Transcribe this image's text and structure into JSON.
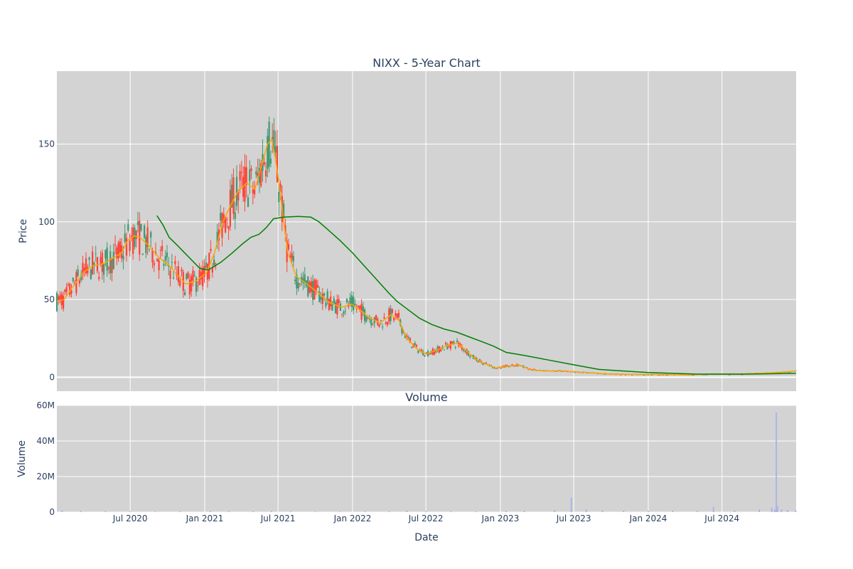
{
  "chart_data": [
    {
      "type": "candlestick",
      "title": "NIXX - 5-Year Chart",
      "xlabel": "",
      "ylabel": "Price",
      "ylim": [
        -9,
        197
      ],
      "grid": true,
      "yticks": [
        0,
        50,
        100,
        150
      ],
      "colors": {
        "increasing": "#3d9970",
        "decreasing": "#ff4136",
        "ma_short": "#ffa500",
        "ma_long": "#008000",
        "plot_bg": "#d3d3d3",
        "grid": "#ffffff"
      },
      "overlays": [
        {
          "kind": "moving-average-short",
          "points": [
            [
              "2020-01-02",
              49
            ],
            [
              "2020-01-20",
              50
            ],
            [
              "2020-02-10",
              58
            ],
            [
              "2020-03-10",
              68
            ],
            [
              "2020-04-01",
              72
            ],
            [
              "2020-04-25",
              73
            ],
            [
              "2020-05-15",
              76
            ],
            [
              "2020-06-10",
              80
            ],
            [
              "2020-06-25",
              88
            ],
            [
              "2020-07-10",
              91
            ],
            [
              "2020-07-25",
              90
            ],
            [
              "2020-08-15",
              85
            ],
            [
              "2020-09-10",
              77
            ],
            [
              "2020-10-05",
              72
            ],
            [
              "2020-10-25",
              66
            ],
            [
              "2020-11-15",
              60
            ],
            [
              "2020-12-10",
              62
            ],
            [
              "2021-01-05",
              67
            ],
            [
              "2021-01-25",
              80
            ],
            [
              "2021-02-15",
              100
            ],
            [
              "2021-03-05",
              110
            ],
            [
              "2021-03-25",
              120
            ],
            [
              "2021-04-15",
              125
            ],
            [
              "2021-05-05",
              121
            ],
            [
              "2021-05-20",
              135
            ],
            [
              "2021-06-05",
              150
            ],
            [
              "2021-06-15",
              153
            ],
            [
              "2021-06-25",
              140
            ],
            [
              "2021-07-05",
              122
            ],
            [
              "2021-07-15",
              100
            ],
            [
              "2021-07-25",
              80
            ],
            [
              "2021-08-15",
              65
            ],
            [
              "2021-09-10",
              60
            ],
            [
              "2021-10-10",
              54
            ],
            [
              "2021-11-05",
              48
            ],
            [
              "2021-12-05",
              45
            ],
            [
              "2021-12-30",
              47
            ],
            [
              "2022-01-20",
              43
            ],
            [
              "2022-02-15",
              38
            ],
            [
              "2022-03-10",
              35
            ],
            [
              "2022-04-05",
              40
            ],
            [
              "2022-04-25",
              37
            ],
            [
              "2022-05-15",
              25
            ],
            [
              "2022-06-10",
              18
            ],
            [
              "2022-07-01",
              15
            ],
            [
              "2022-07-25",
              17
            ],
            [
              "2022-08-20",
              20
            ],
            [
              "2022-09-15",
              22
            ],
            [
              "2022-10-05",
              18
            ],
            [
              "2022-10-25",
              13
            ],
            [
              "2022-11-20",
              9
            ],
            [
              "2022-12-20",
              6
            ],
            [
              "2023-01-20",
              7
            ],
            [
              "2023-02-15",
              8
            ],
            [
              "2023-03-15",
              5
            ],
            [
              "2023-04-15",
              4
            ],
            [
              "2023-06-01",
              4
            ],
            [
              "2023-08-01",
              3
            ],
            [
              "2023-10-01",
              2
            ],
            [
              "2023-12-01",
              1.8
            ],
            [
              "2024-02-01",
              1.8
            ],
            [
              "2024-04-01",
              1.5
            ],
            [
              "2024-06-01",
              2
            ],
            [
              "2024-08-01",
              2
            ],
            [
              "2024-10-01",
              2.5
            ],
            [
              "2024-11-15",
              3
            ],
            [
              "2024-12-31",
              4
            ]
          ]
        },
        {
          "kind": "moving-average-long",
          "points": [
            [
              "2020-09-05",
              104
            ],
            [
              "2020-09-20",
              98
            ],
            [
              "2020-10-05",
              90
            ],
            [
              "2020-10-25",
              85
            ],
            [
              "2020-11-20",
              78
            ],
            [
              "2020-12-20",
              70
            ],
            [
              "2021-01-10",
              69
            ],
            [
              "2021-02-10",
              74
            ],
            [
              "2021-03-10",
              80
            ],
            [
              "2021-04-05",
              86
            ],
            [
              "2021-04-25",
              90
            ],
            [
              "2021-05-15",
              92
            ],
            [
              "2021-06-01",
              96
            ],
            [
              "2021-06-20",
              102
            ],
            [
              "2021-07-15",
              103
            ],
            [
              "2021-08-20",
              103.5
            ],
            [
              "2021-09-20",
              103
            ],
            [
              "2021-10-10",
              100
            ],
            [
              "2021-11-01",
              95
            ],
            [
              "2021-12-01",
              88
            ],
            [
              "2022-01-01",
              80
            ],
            [
              "2022-02-01",
              71
            ],
            [
              "2022-03-01",
              63
            ],
            [
              "2022-04-01",
              54
            ],
            [
              "2022-04-20",
              49
            ],
            [
              "2022-05-15",
              44
            ],
            [
              "2022-06-15",
              38
            ],
            [
              "2022-07-15",
              34
            ],
            [
              "2022-08-15",
              31
            ],
            [
              "2022-09-15",
              29
            ],
            [
              "2022-10-15",
              26
            ],
            [
              "2022-11-15",
              23
            ],
            [
              "2022-12-15",
              20
            ],
            [
              "2023-01-15",
              16
            ],
            [
              "2023-03-01",
              14
            ],
            [
              "2023-05-01",
              11
            ],
            [
              "2023-07-01",
              8
            ],
            [
              "2023-09-01",
              5
            ],
            [
              "2023-11-01",
              4
            ],
            [
              "2024-01-01",
              3
            ],
            [
              "2024-03-01",
              2.5
            ],
            [
              "2024-05-01",
              2
            ],
            [
              "2024-07-01",
              2
            ],
            [
              "2024-09-01",
              2
            ],
            [
              "2024-11-01",
              2.2
            ],
            [
              "2024-12-31",
              2.5
            ]
          ]
        }
      ]
    },
    {
      "type": "bar",
      "title": "Volume",
      "xlabel": "Date",
      "ylabel": "Volume",
      "ylim": [
        0,
        60000000
      ],
      "grid": true,
      "yticks": [
        0,
        20000000,
        40000000,
        60000000
      ],
      "ytick_labels": [
        "0",
        "20M",
        "40M",
        "60M"
      ],
      "xticks": [
        {
          "date": "2020-07-01",
          "label": "Jul 2020"
        },
        {
          "date": "2021-01-01",
          "label": "Jan 2021"
        },
        {
          "date": "2021-07-01",
          "label": "Jul 2021"
        },
        {
          "date": "2022-01-01",
          "label": "Jan 2022"
        },
        {
          "date": "2022-07-01",
          "label": "Jul 2022"
        },
        {
          "date": "2023-01-01",
          "label": "Jan 2023"
        },
        {
          "date": "2023-07-01",
          "label": "Jul 2023"
        },
        {
          "date": "2024-01-01",
          "label": "Jan 2024"
        },
        {
          "date": "2024-07-01",
          "label": "Jul 2024"
        }
      ],
      "colors": {
        "bar": "#aeb4e8",
        "plot_bg": "#d3d3d3",
        "grid": "#ffffff"
      },
      "series": [
        {
          "points": [
            [
              "2020-01-15",
              800000
            ],
            [
              "2020-03-01",
              600000
            ],
            [
              "2020-05-01",
              500000
            ],
            [
              "2020-07-01",
              400000
            ],
            [
              "2020-09-01",
              300000
            ],
            [
              "2020-11-01",
              400000
            ],
            [
              "2021-01-15",
              600000
            ],
            [
              "2021-03-01",
              500000
            ],
            [
              "2021-05-01",
              500000
            ],
            [
              "2021-06-15",
              700000
            ],
            [
              "2021-08-01",
              400000
            ],
            [
              "2021-10-01",
              300000
            ],
            [
              "2021-12-01",
              300000
            ],
            [
              "2022-02-01",
              300000
            ],
            [
              "2022-04-01",
              400000
            ],
            [
              "2022-05-15",
              1000000
            ],
            [
              "2022-07-01",
              500000
            ],
            [
              "2022-09-01",
              400000
            ],
            [
              "2022-11-01",
              400000
            ],
            [
              "2023-01-15",
              600000
            ],
            [
              "2023-03-01",
              800000
            ],
            [
              "2023-05-15",
              1200000
            ],
            [
              "2023-06-25",
              8000000
            ],
            [
              "2023-08-01",
              1500000
            ],
            [
              "2023-09-10",
              1000000
            ],
            [
              "2023-11-01",
              800000
            ],
            [
              "2024-01-01",
              600000
            ],
            [
              "2024-03-01",
              800000
            ],
            [
              "2024-05-01",
              700000
            ],
            [
              "2024-06-10",
              3000000
            ],
            [
              "2024-08-01",
              1000000
            ],
            [
              "2024-10-01",
              1500000
            ],
            [
              "2024-11-01",
              2500000
            ],
            [
              "2024-11-08",
              1500000
            ],
            [
              "2024-11-12",
              56000000
            ],
            [
              "2024-11-15",
              3500000
            ],
            [
              "2024-11-25",
              1500000
            ],
            [
              "2024-12-10",
              1200000
            ],
            [
              "2024-12-30",
              1000000
            ]
          ]
        }
      ]
    }
  ]
}
